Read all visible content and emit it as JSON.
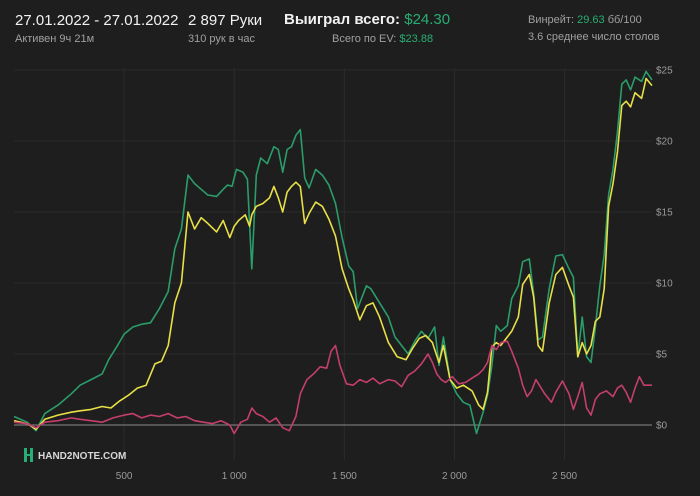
{
  "header": {
    "date_range": "27.01.2022 - 27.01.2022",
    "active_time": "Активен 9ч 21м",
    "hands": "2 897 Руки",
    "hands_per_hour": "310 рук в час",
    "won_label": "Выиграл всего:",
    "won_value": "$24.30",
    "ev_label": "Всего по EV:",
    "ev_value": "$23.88",
    "winrate_label": "Винрейт:",
    "winrate_value": "29.63",
    "winrate_unit": "бб/100",
    "tables": "3.6 среднее число столов"
  },
  "logo": {
    "text": "HAND2NOTE.COM"
  },
  "colors": {
    "background": "#1e1e1e",
    "won": "#2a9d6a",
    "ev": "#e8e046",
    "red": "#c43e6e",
    "zero_line": "#8a8a8a",
    "accent_green": "#27ae74"
  },
  "chart_data": {
    "type": "line",
    "xlim": [
      0,
      2897
    ],
    "ylim": [
      -1,
      25
    ],
    "x_ticks": [
      {
        "value": 500,
        "label": "500"
      },
      {
        "value": 1000,
        "label": "1 000"
      },
      {
        "value": 1500,
        "label": "1 500"
      },
      {
        "value": 2000,
        "label": "2 000"
      },
      {
        "value": 2500,
        "label": "2 500"
      }
    ],
    "y_ticks": [
      {
        "value": 0,
        "label": "$0"
      },
      {
        "value": 5,
        "label": "$5"
      },
      {
        "value": 10,
        "label": "$10"
      },
      {
        "value": 15,
        "label": "$15"
      },
      {
        "value": 20,
        "label": "$20"
      },
      {
        "value": 25,
        "label": "$25"
      }
    ],
    "series": [
      {
        "color": "#2a9d6a",
        "points": [
          [
            0,
            0.6
          ],
          [
            60,
            0.2
          ],
          [
            100,
            -0.4
          ],
          [
            140,
            0.8
          ],
          [
            200,
            1.4
          ],
          [
            260,
            2.2
          ],
          [
            300,
            2.8
          ],
          [
            350,
            3.2
          ],
          [
            400,
            3.6
          ],
          [
            430,
            4.6
          ],
          [
            470,
            5.6
          ],
          [
            500,
            6.4
          ],
          [
            540,
            6.9
          ],
          [
            580,
            7.1
          ],
          [
            620,
            7.2
          ],
          [
            660,
            8.2
          ],
          [
            700,
            9.4
          ],
          [
            730,
            12.4
          ],
          [
            760,
            13.8
          ],
          [
            790,
            17.6
          ],
          [
            820,
            17.0
          ],
          [
            850,
            16.6
          ],
          [
            880,
            16.2
          ],
          [
            920,
            16.1
          ],
          [
            950,
            16.6
          ],
          [
            970,
            16.9
          ],
          [
            990,
            16.8
          ],
          [
            1010,
            18.0
          ],
          [
            1040,
            17.8
          ],
          [
            1060,
            17.3
          ],
          [
            1080,
            11.0
          ],
          [
            1100,
            17.6
          ],
          [
            1120,
            18.8
          ],
          [
            1150,
            18.4
          ],
          [
            1180,
            19.6
          ],
          [
            1200,
            19.4
          ],
          [
            1220,
            17.8
          ],
          [
            1240,
            19.4
          ],
          [
            1260,
            19.6
          ],
          [
            1280,
            20.4
          ],
          [
            1300,
            20.8
          ],
          [
            1320,
            17.4
          ],
          [
            1340,
            16.7
          ],
          [
            1370,
            18.0
          ],
          [
            1400,
            17.6
          ],
          [
            1430,
            16.9
          ],
          [
            1460,
            15.6
          ],
          [
            1490,
            13.2
          ],
          [
            1520,
            11.2
          ],
          [
            1540,
            10.8
          ],
          [
            1560,
            8.2
          ],
          [
            1580,
            9.0
          ],
          [
            1600,
            9.8
          ],
          [
            1620,
            9.6
          ],
          [
            1660,
            8.6
          ],
          [
            1700,
            7.6
          ],
          [
            1730,
            6.2
          ],
          [
            1760,
            5.6
          ],
          [
            1790,
            5.0
          ],
          [
            1820,
            5.9
          ],
          [
            1850,
            6.6
          ],
          [
            1880,
            6.1
          ],
          [
            1910,
            6.9
          ],
          [
            1930,
            4.2
          ],
          [
            1950,
            6.2
          ],
          [
            1980,
            3.2
          ],
          [
            2010,
            2.2
          ],
          [
            2040,
            1.6
          ],
          [
            2070,
            1.4
          ],
          [
            2100,
            -0.6
          ],
          [
            2130,
            0.9
          ],
          [
            2150,
            2.1
          ],
          [
            2170,
            4.2
          ],
          [
            2190,
            7.0
          ],
          [
            2210,
            6.6
          ],
          [
            2240,
            7.0
          ],
          [
            2260,
            8.9
          ],
          [
            2290,
            9.8
          ],
          [
            2310,
            11.5
          ],
          [
            2340,
            11.7
          ],
          [
            2360,
            9.2
          ],
          [
            2380,
            6.0
          ],
          [
            2400,
            6.2
          ],
          [
            2430,
            9.6
          ],
          [
            2460,
            11.9
          ],
          [
            2490,
            12.0
          ],
          [
            2520,
            11.0
          ],
          [
            2540,
            10.4
          ],
          [
            2560,
            4.8
          ],
          [
            2580,
            7.6
          ],
          [
            2600,
            4.8
          ],
          [
            2620,
            4.4
          ],
          [
            2640,
            6.9
          ],
          [
            2660,
            9.8
          ],
          [
            2680,
            12.0
          ],
          [
            2700,
            16.2
          ],
          [
            2720,
            18.0
          ],
          [
            2740,
            20.6
          ],
          [
            2760,
            24.0
          ],
          [
            2780,
            24.3
          ],
          [
            2800,
            23.6
          ],
          [
            2820,
            24.5
          ],
          [
            2850,
            24.2
          ],
          [
            2870,
            24.9
          ],
          [
            2897,
            24.3
          ]
        ]
      },
      {
        "color": "#e8e046",
        "points": [
          [
            0,
            0.3
          ],
          [
            60,
            0.1
          ],
          [
            100,
            -0.3
          ],
          [
            140,
            0.4
          ],
          [
            200,
            0.7
          ],
          [
            260,
            0.9
          ],
          [
            300,
            1.0
          ],
          [
            350,
            1.1
          ],
          [
            400,
            1.3
          ],
          [
            440,
            1.2
          ],
          [
            480,
            1.7
          ],
          [
            520,
            2.1
          ],
          [
            560,
            2.6
          ],
          [
            600,
            2.8
          ],
          [
            640,
            4.3
          ],
          [
            670,
            4.5
          ],
          [
            700,
            5.6
          ],
          [
            730,
            8.6
          ],
          [
            760,
            10.0
          ],
          [
            790,
            15.0
          ],
          [
            820,
            13.8
          ],
          [
            850,
            14.6
          ],
          [
            880,
            14.2
          ],
          [
            920,
            13.6
          ],
          [
            950,
            14.4
          ],
          [
            980,
            13.2
          ],
          [
            1000,
            14.0
          ],
          [
            1020,
            14.4
          ],
          [
            1050,
            14.8
          ],
          [
            1070,
            14.0
          ],
          [
            1080,
            14.8
          ],
          [
            1100,
            15.4
          ],
          [
            1130,
            15.6
          ],
          [
            1160,
            16.0
          ],
          [
            1180,
            16.8
          ],
          [
            1200,
            16.0
          ],
          [
            1220,
            15.0
          ],
          [
            1240,
            16.4
          ],
          [
            1260,
            16.8
          ],
          [
            1280,
            17.1
          ],
          [
            1300,
            16.8
          ],
          [
            1320,
            14.2
          ],
          [
            1340,
            14.9
          ],
          [
            1370,
            15.7
          ],
          [
            1400,
            15.4
          ],
          [
            1430,
            14.5
          ],
          [
            1460,
            13.3
          ],
          [
            1490,
            11.0
          ],
          [
            1520,
            9.6
          ],
          [
            1540,
            8.8
          ],
          [
            1570,
            7.4
          ],
          [
            1600,
            8.4
          ],
          [
            1630,
            8.6
          ],
          [
            1660,
            7.6
          ],
          [
            1700,
            5.8
          ],
          [
            1740,
            4.8
          ],
          [
            1780,
            4.6
          ],
          [
            1810,
            5.4
          ],
          [
            1840,
            6.1
          ],
          [
            1870,
            6.3
          ],
          [
            1900,
            5.8
          ],
          [
            1930,
            4.4
          ],
          [
            1950,
            5.6
          ],
          [
            1980,
            3.2
          ],
          [
            2010,
            2.6
          ],
          [
            2040,
            2.8
          ],
          [
            2080,
            2.4
          ],
          [
            2110,
            1.4
          ],
          [
            2130,
            1.1
          ],
          [
            2150,
            2.3
          ],
          [
            2170,
            5.5
          ],
          [
            2190,
            5.8
          ],
          [
            2210,
            5.6
          ],
          [
            2240,
            6.2
          ],
          [
            2260,
            6.6
          ],
          [
            2290,
            7.6
          ],
          [
            2310,
            9.9
          ],
          [
            2340,
            10.6
          ],
          [
            2360,
            9.0
          ],
          [
            2380,
            5.6
          ],
          [
            2400,
            5.2
          ],
          [
            2430,
            8.6
          ],
          [
            2460,
            10.6
          ],
          [
            2490,
            11.1
          ],
          [
            2520,
            9.8
          ],
          [
            2540,
            9.0
          ],
          [
            2560,
            4.8
          ],
          [
            2580,
            5.8
          ],
          [
            2600,
            5.0
          ],
          [
            2620,
            5.6
          ],
          [
            2640,
            7.3
          ],
          [
            2660,
            7.6
          ],
          [
            2680,
            9.6
          ],
          [
            2700,
            15.4
          ],
          [
            2720,
            17.0
          ],
          [
            2740,
            19.2
          ],
          [
            2760,
            22.5
          ],
          [
            2780,
            22.8
          ],
          [
            2800,
            22.4
          ],
          [
            2820,
            23.4
          ],
          [
            2850,
            23.0
          ],
          [
            2870,
            24.4
          ],
          [
            2897,
            23.9
          ]
        ]
      },
      {
        "color": "#c43e6e",
        "points": [
          [
            0,
            0.2
          ],
          [
            60,
            0.1
          ],
          [
            100,
            -0.2
          ],
          [
            140,
            0.2
          ],
          [
            200,
            0.3
          ],
          [
            260,
            0.5
          ],
          [
            300,
            0.4
          ],
          [
            350,
            0.3
          ],
          [
            400,
            0.2
          ],
          [
            450,
            0.5
          ],
          [
            500,
            0.7
          ],
          [
            540,
            0.8
          ],
          [
            580,
            0.5
          ],
          [
            620,
            0.7
          ],
          [
            660,
            0.6
          ],
          [
            700,
            0.8
          ],
          [
            740,
            0.5
          ],
          [
            780,
            0.6
          ],
          [
            820,
            0.3
          ],
          [
            860,
            0.2
          ],
          [
            900,
            0.1
          ],
          [
            940,
            0.3
          ],
          [
            980,
            0.0
          ],
          [
            1000,
            -0.6
          ],
          [
            1030,
            0.2
          ],
          [
            1060,
            0.4
          ],
          [
            1080,
            1.2
          ],
          [
            1100,
            0.8
          ],
          [
            1130,
            0.6
          ],
          [
            1160,
            0.2
          ],
          [
            1190,
            0.5
          ],
          [
            1220,
            -0.2
          ],
          [
            1250,
            -0.4
          ],
          [
            1280,
            0.6
          ],
          [
            1300,
            2.2
          ],
          [
            1330,
            3.2
          ],
          [
            1360,
            3.6
          ],
          [
            1390,
            4.1
          ],
          [
            1420,
            4.0
          ],
          [
            1440,
            5.2
          ],
          [
            1460,
            5.6
          ],
          [
            1480,
            4.2
          ],
          [
            1510,
            2.9
          ],
          [
            1540,
            2.8
          ],
          [
            1570,
            3.2
          ],
          [
            1600,
            3.0
          ],
          [
            1630,
            3.3
          ],
          [
            1660,
            2.9
          ],
          [
            1700,
            3.2
          ],
          [
            1730,
            3.1
          ],
          [
            1760,
            2.7
          ],
          [
            1790,
            3.5
          ],
          [
            1820,
            3.8
          ],
          [
            1850,
            4.3
          ],
          [
            1880,
            5.0
          ],
          [
            1900,
            4.4
          ],
          [
            1920,
            3.6
          ],
          [
            1940,
            3.2
          ],
          [
            1960,
            3.0
          ],
          [
            1990,
            3.4
          ],
          [
            2020,
            2.9
          ],
          [
            2050,
            3.0
          ],
          [
            2080,
            3.3
          ],
          [
            2110,
            3.6
          ],
          [
            2130,
            3.9
          ],
          [
            2150,
            4.4
          ],
          [
            2170,
            5.6
          ],
          [
            2190,
            5.3
          ],
          [
            2210,
            5.8
          ],
          [
            2240,
            5.9
          ],
          [
            2260,
            5.2
          ],
          [
            2290,
            4.0
          ],
          [
            2310,
            2.8
          ],
          [
            2330,
            2.0
          ],
          [
            2350,
            2.4
          ],
          [
            2370,
            3.2
          ],
          [
            2390,
            2.7
          ],
          [
            2410,
            2.2
          ],
          [
            2440,
            1.6
          ],
          [
            2460,
            2.3
          ],
          [
            2490,
            3.1
          ],
          [
            2520,
            2.2
          ],
          [
            2540,
            1.1
          ],
          [
            2560,
            2.0
          ],
          [
            2580,
            3.0
          ],
          [
            2600,
            1.2
          ],
          [
            2620,
            0.7
          ],
          [
            2640,
            1.8
          ],
          [
            2660,
            2.2
          ],
          [
            2690,
            2.4
          ],
          [
            2720,
            2.0
          ],
          [
            2740,
            2.6
          ],
          [
            2760,
            2.8
          ],
          [
            2780,
            2.3
          ],
          [
            2800,
            1.6
          ],
          [
            2820,
            2.6
          ],
          [
            2840,
            3.4
          ],
          [
            2860,
            2.8
          ],
          [
            2897,
            2.8
          ]
        ]
      }
    ]
  }
}
